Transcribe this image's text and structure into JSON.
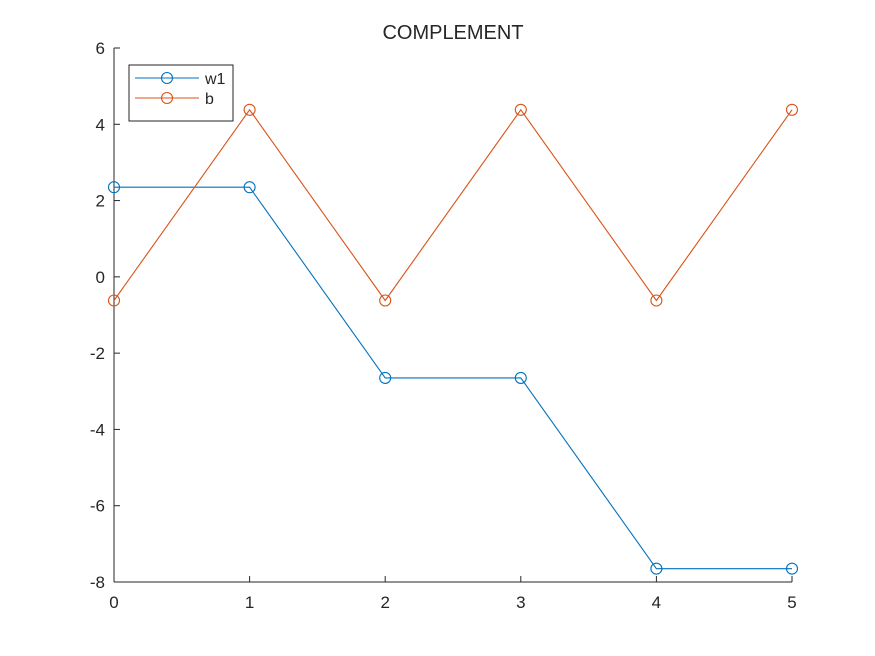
{
  "chart_data": {
    "type": "line",
    "title": "COMPLEMENT",
    "xlabel": "",
    "ylabel": "",
    "x": [
      0,
      1,
      2,
      3,
      4,
      5
    ],
    "xlim": [
      0,
      5
    ],
    "ylim": [
      -8,
      6
    ],
    "xticks": [
      0,
      1,
      2,
      3,
      4,
      5
    ],
    "yticks": [
      -8,
      -6,
      -4,
      -2,
      0,
      2,
      4,
      6
    ],
    "xtick_labels": [
      "0",
      "1",
      "2",
      "3",
      "4",
      "5"
    ],
    "ytick_labels": [
      "-8",
      "-6",
      "-4",
      "-2",
      "0",
      "2",
      "4",
      "6"
    ],
    "grid": false,
    "legend_position": "top-left",
    "marker": "circle",
    "series": [
      {
        "name": "w1",
        "color": "#0072BD",
        "values": [
          2.35,
          2.35,
          -2.65,
          -2.65,
          -7.65,
          -7.65
        ]
      },
      {
        "name": "b",
        "color": "#D95319",
        "values": [
          -0.62,
          4.38,
          -0.62,
          4.38,
          -0.62,
          4.38
        ]
      }
    ]
  }
}
